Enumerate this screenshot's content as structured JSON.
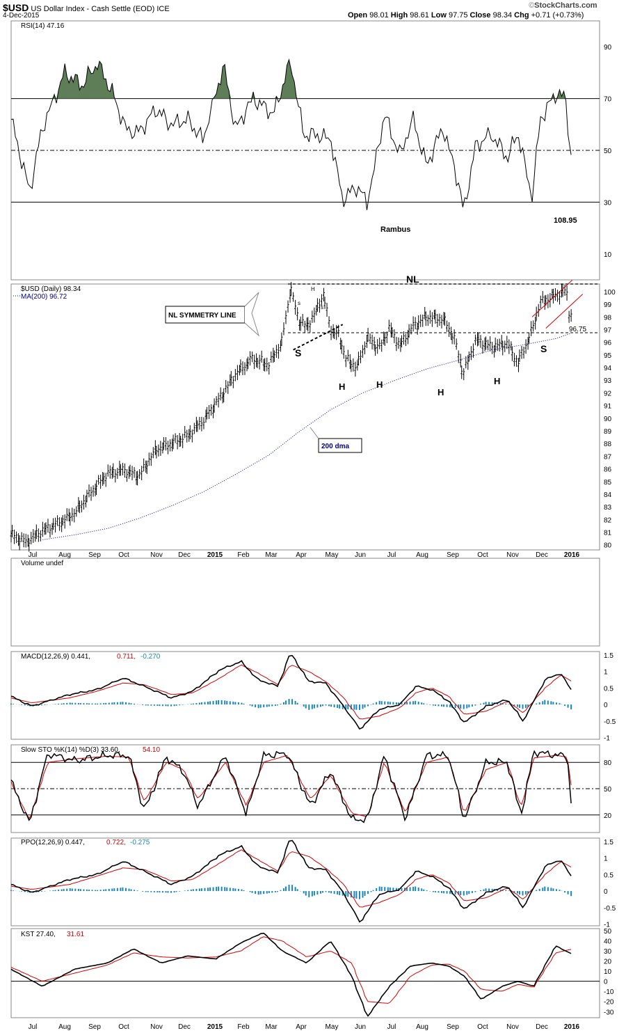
{
  "header": {
    "symbol": "$USD",
    "name": "US Dollar Index - Cash Settle (EOD)",
    "exchange": "ICE",
    "date": "4-Dec-2015",
    "ohlc": "Open 98.01  High 98.61  Low 97.75  Close 98.34  Chg +0.71 (+0.73%)",
    "open_label": "Open",
    "open": "98.01",
    "high_label": "High",
    "high": "98.61",
    "low_label": "Low",
    "low": "97.75",
    "close_label": "Close",
    "close": "98.34",
    "chg_label": "Chg",
    "chg": "+0.71 (+0.73%)",
    "watermark_prefix": "©",
    "watermark": "StockCharts.com"
  },
  "x_labels": [
    "Jul",
    "Aug",
    "Sep",
    "Oct",
    "Nov",
    "Dec",
    "2015",
    "Feb",
    "Mar",
    "Apr",
    "May",
    "Jun",
    "Jul",
    "Aug",
    "Sep",
    "Oct",
    "Nov",
    "Dec",
    "2016"
  ],
  "colors": {
    "price": "#000000",
    "ma": "#00008b",
    "signal": "#d40000",
    "hist": "#1a86b8",
    "rsi_fill": "#5e7e57",
    "pattern": "#d40000",
    "axis": "#000000"
  },
  "chart_data": [
    {
      "type": "line",
      "panel": "rsi",
      "label": "RSI(14) 47.16",
      "y_ticks": [
        90,
        70,
        50,
        30,
        10
      ],
      "ylim": [
        0,
        100
      ],
      "ref_lines": [
        70,
        50,
        30
      ],
      "x": [
        "2014-06-20",
        "2014-07-08",
        "2014-07-20",
        "2014-08-10",
        "2014-08-28",
        "2014-09-10",
        "2014-09-25",
        "2014-10-08",
        "2014-10-20",
        "2014-11-05",
        "2014-11-20",
        "2014-12-05",
        "2014-12-20",
        "2015-01-08",
        "2015-01-20",
        "2015-02-05",
        "2015-02-25",
        "2015-03-13",
        "2015-03-25",
        "2015-04-08",
        "2015-04-20",
        "2015-05-01",
        "2015-05-15",
        "2015-05-25",
        "2015-06-10",
        "2015-06-25",
        "2015-07-07",
        "2015-07-20",
        "2015-08-05",
        "2015-08-20",
        "2015-08-24",
        "2015-09-05",
        "2015-09-20",
        "2015-10-05",
        "2015-10-15",
        "2015-10-28",
        "2015-11-05",
        "2015-11-20",
        "2015-11-30",
        "2015-12-03",
        "2015-12-04"
      ],
      "values": [
        62,
        34,
        58,
        80,
        75,
        84,
        72,
        58,
        57,
        66,
        60,
        62,
        54,
        83,
        58,
        70,
        64,
        84,
        56,
        56,
        54,
        31,
        36,
        30,
        64,
        48,
        62,
        44,
        59,
        36,
        26,
        52,
        56,
        47,
        57,
        33,
        62,
        72,
        70,
        54,
        47.16
      ],
      "annotations": [
        "Rambus",
        "108.95"
      ]
    },
    {
      "type": "line",
      "panel": "price",
      "label": "$USD (Daily) 98.34",
      "series": [
        {
          "name": "$USD (Daily) 98.34",
          "style": "ohlc",
          "x": [
            "2014-06-20",
            "2014-07-05",
            "2014-07-20",
            "2014-08-05",
            "2014-08-20",
            "2014-09-05",
            "2014-09-20",
            "2014-10-05",
            "2014-10-20",
            "2014-11-05",
            "2014-11-20",
            "2014-12-05",
            "2014-12-20",
            "2015-01-05",
            "2015-01-20",
            "2015-02-05",
            "2015-02-20",
            "2015-03-05",
            "2015-03-13",
            "2015-03-20",
            "2015-03-28",
            "2015-04-05",
            "2015-04-13",
            "2015-04-20",
            "2015-04-28",
            "2015-05-05",
            "2015-05-15",
            "2015-05-25",
            "2015-06-05",
            "2015-06-15",
            "2015-06-25",
            "2015-07-07",
            "2015-07-20",
            "2015-08-05",
            "2015-08-15",
            "2015-08-24",
            "2015-09-05",
            "2015-09-20",
            "2015-10-05",
            "2015-10-15",
            "2015-10-28",
            "2015-11-05",
            "2015-11-20",
            "2015-11-30",
            "2015-12-03",
            "2015-12-04"
          ],
          "values": [
            80.8,
            80.2,
            81.1,
            81.7,
            82.5,
            84.2,
            85.6,
            85.9,
            85.4,
            87.5,
            88.0,
            88.6,
            89.8,
            91.6,
            93.5,
            94.7,
            94.2,
            96.0,
            100.4,
            97.8,
            97.2,
            98.2,
            99.8,
            97.0,
            96.5,
            94.6,
            94.0,
            96.4,
            95.5,
            97.1,
            95.7,
            97.2,
            98.0,
            97.8,
            96.4,
            93.5,
            96.2,
            95.6,
            95.9,
            94.3,
            96.8,
            99.1,
            99.7,
            100.1,
            97.6,
            98.34
          ]
        },
        {
          "name": "MA(200) 96.72",
          "style": "dotted",
          "x": [
            "2014-07-20",
            "2014-08-20",
            "2014-09-20",
            "2014-10-20",
            "2014-11-20",
            "2014-12-20",
            "2015-01-20",
            "2015-02-20",
            "2015-03-20",
            "2015-04-20",
            "2015-05-20",
            "2015-06-20",
            "2015-07-20",
            "2015-08-20",
            "2015-09-20",
            "2015-10-20",
            "2015-11-20",
            "2015-12-04"
          ],
          "values": [
            80.4,
            80.8,
            81.3,
            82.1,
            83.1,
            84.2,
            85.6,
            87.1,
            88.9,
            90.7,
            92.0,
            93.0,
            93.9,
            94.6,
            95.4,
            95.8,
            96.3,
            96.72
          ]
        }
      ],
      "y_ticks": [
        100,
        99,
        98,
        97,
        96,
        95,
        94,
        93,
        92,
        91,
        90,
        89,
        88,
        87,
        86,
        85,
        84,
        83,
        82,
        81,
        80
      ],
      "ylim": [
        79.6,
        100.6
      ],
      "neckline": 100.6,
      "symmetry_line": 96.75,
      "annotations": [
        "NL",
        "NL SYMMETRY LINE",
        "S",
        "H",
        "S",
        "S",
        "H",
        "H",
        "H",
        "H",
        "S",
        "200 dma",
        "96.75",
        "s",
        "s",
        "H",
        "s"
      ]
    },
    {
      "type": "bar",
      "panel": "volume",
      "label": "Volume undef"
    },
    {
      "type": "line",
      "panel": "macd",
      "series_names": [],
      "label_parts": [
        "MACD(12,26,9)",
        "0.441,",
        "0.711,",
        "-0.270"
      ],
      "y_ticks": [
        1.5,
        1.0,
        0.5,
        0.0,
        -0.5,
        -1.0
      ],
      "ylim": [
        -1.05,
        1.6
      ],
      "x": [
        "2014-06-20",
        "2014-07-10",
        "2014-08-15",
        "2014-09-10",
        "2014-10-05",
        "2014-10-25",
        "2014-11-20",
        "2014-12-10",
        "2015-01-05",
        "2015-01-25",
        "2015-02-10",
        "2015-03-01",
        "2015-03-13",
        "2015-03-30",
        "2015-04-15",
        "2015-05-01",
        "2015-05-18",
        "2015-06-05",
        "2015-06-25",
        "2015-07-10",
        "2015-07-25",
        "2015-08-10",
        "2015-08-25",
        "2015-09-15",
        "2015-10-05",
        "2015-10-20",
        "2015-11-10",
        "2015-11-25",
        "2015-12-04"
      ],
      "macd": [
        0.25,
        -0.05,
        0.3,
        0.45,
        0.8,
        0.55,
        0.2,
        0.4,
        1.05,
        1.3,
        0.75,
        0.55,
        1.55,
        0.7,
        0.65,
        0.0,
        -0.75,
        -0.15,
        0.0,
        0.55,
        0.45,
        0.1,
        -0.55,
        -0.05,
        0.15,
        -0.5,
        0.75,
        0.95,
        0.441
      ],
      "signal": [
        0.2,
        0.05,
        0.2,
        0.4,
        0.65,
        0.6,
        0.3,
        0.35,
        0.8,
        1.2,
        0.95,
        0.6,
        1.2,
        1.0,
        0.7,
        0.25,
        -0.45,
        -0.35,
        -0.1,
        0.35,
        0.5,
        0.25,
        -0.3,
        -0.2,
        0.1,
        -0.25,
        0.5,
        0.9,
        0.711
      ],
      "histogram": [
        0.05,
        -0.1,
        0.1,
        0.05,
        0.15,
        -0.05,
        -0.1,
        0.05,
        0.25,
        0.1,
        -0.2,
        -0.05,
        0.35,
        -0.3,
        -0.05,
        -0.25,
        -0.3,
        0.2,
        0.1,
        0.2,
        -0.05,
        -0.15,
        -0.25,
        0.15,
        0.05,
        -0.25,
        0.25,
        0.05,
        -0.27
      ]
    },
    {
      "type": "line",
      "panel": "slow_sto",
      "label_parts": [
        "Slow STO %K(14) %D(3)",
        "33.60,",
        "54.10"
      ],
      "y_ticks": [
        80,
        50,
        20
      ],
      "ylim": [
        0,
        100
      ],
      "ref_lines": [
        80,
        50,
        20
      ],
      "x": [
        "2014-06-20",
        "2014-07-08",
        "2014-07-25",
        "2014-08-20",
        "2014-09-20",
        "2014-10-10",
        "2014-10-25",
        "2014-11-15",
        "2014-12-01",
        "2014-12-15",
        "2015-01-10",
        "2015-01-30",
        "2015-02-15",
        "2015-03-10",
        "2015-04-01",
        "2015-04-20",
        "2015-05-10",
        "2015-05-25",
        "2015-06-10",
        "2015-06-30",
        "2015-07-20",
        "2015-08-10",
        "2015-08-25",
        "2015-09-15",
        "2015-10-05",
        "2015-10-18",
        "2015-10-30",
        "2015-11-20",
        "2015-12-01",
        "2015-12-04"
      ],
      "k": [
        60,
        10,
        90,
        82,
        88,
        88,
        25,
        86,
        70,
        30,
        88,
        20,
        88,
        90,
        30,
        70,
        15,
        15,
        88,
        15,
        88,
        88,
        15,
        80,
        80,
        20,
        92,
        88,
        88,
        33.6
      ],
      "d": [
        58,
        14,
        80,
        84,
        87,
        86,
        35,
        80,
        72,
        38,
        80,
        30,
        80,
        88,
        38,
        65,
        22,
        18,
        80,
        22,
        80,
        86,
        22,
        72,
        80,
        28,
        85,
        88,
        86,
        54.1
      ]
    },
    {
      "type": "line",
      "panel": "ppo",
      "label_parts": [
        "PPO(12,26,9)",
        "0.447,",
        "0.722,",
        "-0.275"
      ],
      "y_ticks": [
        1.5,
        1.0,
        0.5,
        0.0,
        -0.5,
        -1.0
      ],
      "ylim": [
        -1.05,
        1.6
      ],
      "x": [
        "2014-06-20",
        "2014-07-10",
        "2014-08-15",
        "2014-09-10",
        "2014-10-05",
        "2014-10-25",
        "2014-11-20",
        "2014-12-10",
        "2015-01-05",
        "2015-01-25",
        "2015-02-10",
        "2015-03-01",
        "2015-03-13",
        "2015-03-30",
        "2015-04-15",
        "2015-05-01",
        "2015-05-18",
        "2015-06-05",
        "2015-06-25",
        "2015-07-10",
        "2015-07-25",
        "2015-08-10",
        "2015-08-25",
        "2015-09-15",
        "2015-10-05",
        "2015-10-20",
        "2015-11-10",
        "2015-11-25",
        "2015-12-04"
      ],
      "ppo": [
        0.2,
        -0.05,
        0.35,
        0.5,
        0.9,
        0.6,
        0.2,
        0.45,
        1.1,
        1.35,
        0.75,
        0.55,
        1.6,
        0.7,
        0.65,
        0.0,
        -0.95,
        -0.1,
        0.05,
        0.6,
        0.45,
        0.1,
        -0.55,
        -0.05,
        0.15,
        -0.5,
        0.75,
        0.95,
        0.447
      ],
      "signal": [
        0.15,
        0.05,
        0.2,
        0.45,
        0.7,
        0.65,
        0.3,
        0.35,
        0.85,
        1.25,
        0.95,
        0.6,
        1.2,
        1.05,
        0.7,
        0.25,
        -0.5,
        -0.35,
        -0.1,
        0.35,
        0.5,
        0.25,
        -0.3,
        -0.2,
        0.1,
        -0.25,
        0.5,
        0.9,
        0.722
      ],
      "histogram": [
        0.05,
        -0.1,
        0.15,
        0.05,
        0.2,
        -0.05,
        -0.1,
        0.1,
        0.25,
        0.1,
        -0.2,
        -0.05,
        0.4,
        -0.35,
        -0.05,
        -0.25,
        -0.45,
        0.25,
        0.15,
        0.25,
        -0.05,
        -0.15,
        -0.25,
        0.15,
        0.05,
        -0.25,
        0.25,
        0.05,
        -0.275
      ]
    },
    {
      "type": "line",
      "panel": "kst",
      "label_parts": [
        "KST",
        "27.40,",
        "31.61"
      ],
      "y_ticks": [
        50,
        40,
        30,
        20,
        10,
        0,
        -10,
        -20,
        -30
      ],
      "ylim": [
        -36,
        52
      ],
      "x": [
        "2014-06-20",
        "2014-07-20",
        "2014-08-20",
        "2014-09-20",
        "2014-10-15",
        "2014-11-10",
        "2014-12-05",
        "2015-01-01",
        "2015-01-25",
        "2015-02-15",
        "2015-03-05",
        "2015-03-28",
        "2015-04-20",
        "2015-05-10",
        "2015-05-25",
        "2015-06-15",
        "2015-07-05",
        "2015-07-25",
        "2015-08-10",
        "2015-08-25",
        "2015-09-10",
        "2015-09-30",
        "2015-10-15",
        "2015-10-30",
        "2015-11-20",
        "2015-12-04"
      ],
      "kst": [
        12,
        -5,
        12,
        18,
        32,
        18,
        25,
        22,
        38,
        48,
        30,
        18,
        40,
        5,
        -35,
        -5,
        15,
        18,
        15,
        5,
        -18,
        -5,
        0,
        -5,
        35,
        27.4
      ],
      "signal": [
        14,
        0,
        8,
        16,
        28,
        24,
        23,
        24,
        30,
        44,
        40,
        24,
        30,
        18,
        -20,
        -22,
        5,
        16,
        17,
        10,
        -8,
        -10,
        -3,
        -6,
        28,
        31.61
      ]
    }
  ],
  "macd_label": {
    "name": "MACD(12,26,9)",
    "v1": "0.441,",
    "v2": "0.711,",
    "v3": "-0.270"
  },
  "sto_label": {
    "name": "Slow STO %K(14) %D(3)",
    "v1": "33.60,",
    "v2": "54.10"
  },
  "ppo_label": {
    "name": "PPO(12,26,9)",
    "v1": "0.447,",
    "v2": "0.722,",
    "v3": "-0.275"
  },
  "kst_label": {
    "name": "KST",
    "v1": "27.40,",
    "v2": "31.61"
  },
  "volume_label": "Volume undef",
  "rsi_label": "RSI(14) 47.16",
  "price_label": "$USD (Daily) 98.34",
  "ma_label": "MA(200) 96.72"
}
